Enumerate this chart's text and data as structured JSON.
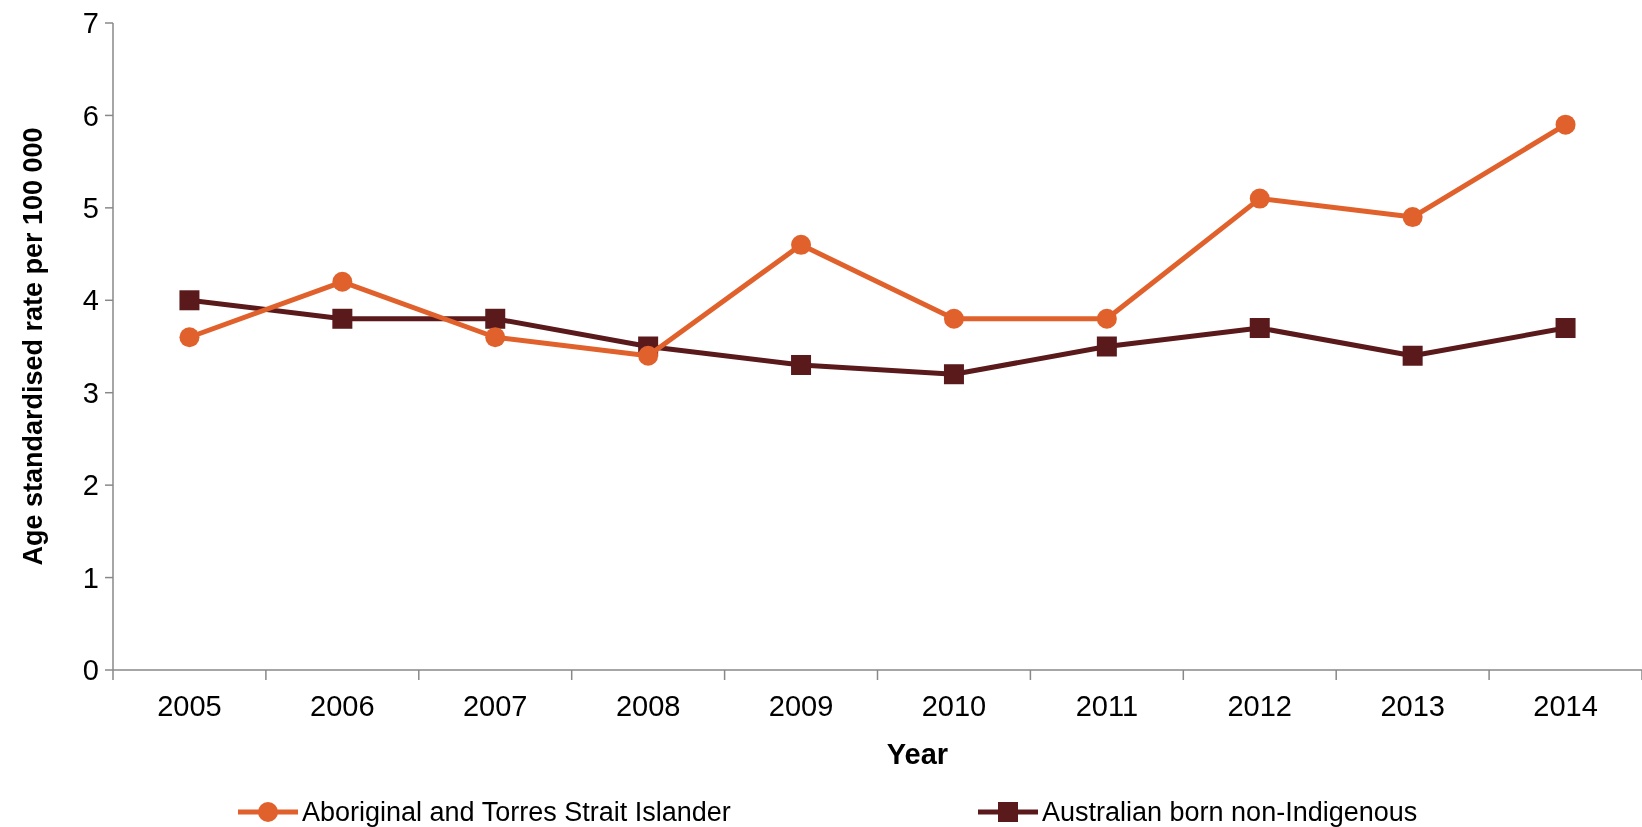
{
  "chart_data": {
    "type": "line",
    "xlabel": "Year",
    "ylabel": "Age standardised rate per 100 000",
    "categories": [
      "2005",
      "2006",
      "2007",
      "2008",
      "2009",
      "2010",
      "2011",
      "2012",
      "2013",
      "2014"
    ],
    "series": [
      {
        "name": "Aboriginal and Torres Strait Islander",
        "color": "#e0612b",
        "marker": "circle",
        "values": [
          3.6,
          4.2,
          3.6,
          3.4,
          4.6,
          3.8,
          3.8,
          5.1,
          4.9,
          5.9
        ]
      },
      {
        "name": "Australian born non-Indigenous",
        "color": "#5a1a1c",
        "marker": "square",
        "values": [
          4.0,
          3.8,
          3.8,
          3.5,
          3.3,
          3.2,
          3.5,
          3.7,
          3.4,
          3.7
        ]
      }
    ],
    "ylim": [
      0,
      7
    ],
    "yticks": [
      0,
      1,
      2,
      3,
      4,
      5,
      6,
      7
    ],
    "grid": false,
    "legend": "bottom",
    "line_style": "solid"
  }
}
